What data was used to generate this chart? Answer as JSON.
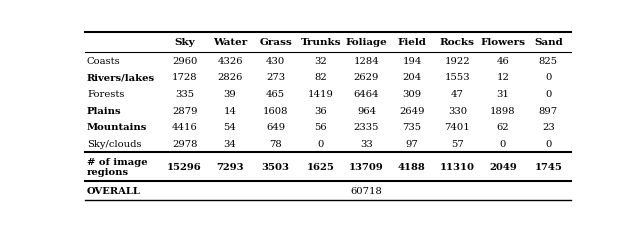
{
  "columns": [
    "Sky",
    "Water",
    "Grass",
    "Trunks",
    "Foliage",
    "Field",
    "Rocks",
    "Flowers",
    "Sand"
  ],
  "rows": [
    {
      "label": "Coasts",
      "bold": false,
      "values": [
        "2960",
        "4326",
        "430",
        "32",
        "1284",
        "194",
        "1922",
        "46",
        "825"
      ]
    },
    {
      "label": "Rivers/lakes",
      "bold": true,
      "values": [
        "1728",
        "2826",
        "273",
        "82",
        "2629",
        "204",
        "1553",
        "12",
        "0"
      ]
    },
    {
      "label": "Forests",
      "bold": false,
      "values": [
        "335",
        "39",
        "465",
        "1419",
        "6464",
        "309",
        "47",
        "31",
        "0"
      ]
    },
    {
      "label": "Plains",
      "bold": true,
      "values": [
        "2879",
        "14",
        "1608",
        "36",
        "964",
        "2649",
        "330",
        "1898",
        "897"
      ]
    },
    {
      "label": "Mountains",
      "bold": true,
      "values": [
        "4416",
        "54",
        "649",
        "56",
        "2335",
        "735",
        "7401",
        "62",
        "23"
      ]
    },
    {
      "label": "Sky/clouds",
      "bold": false,
      "values": [
        "2978",
        "34",
        "78",
        "0",
        "33",
        "97",
        "57",
        "0",
        "0"
      ]
    }
  ],
  "totals_label": "# of image\nregions",
  "totals": [
    "15296",
    "7293",
    "3503",
    "1625",
    "13709",
    "4188",
    "11310",
    "2049",
    "1745"
  ],
  "overall_label": "OVERALL",
  "overall_value": "60718",
  "overall_col_idx": 4,
  "figsize": [
    6.4,
    2.28
  ],
  "dpi": 100,
  "font_size": 7.2,
  "header_font_size": 7.5
}
